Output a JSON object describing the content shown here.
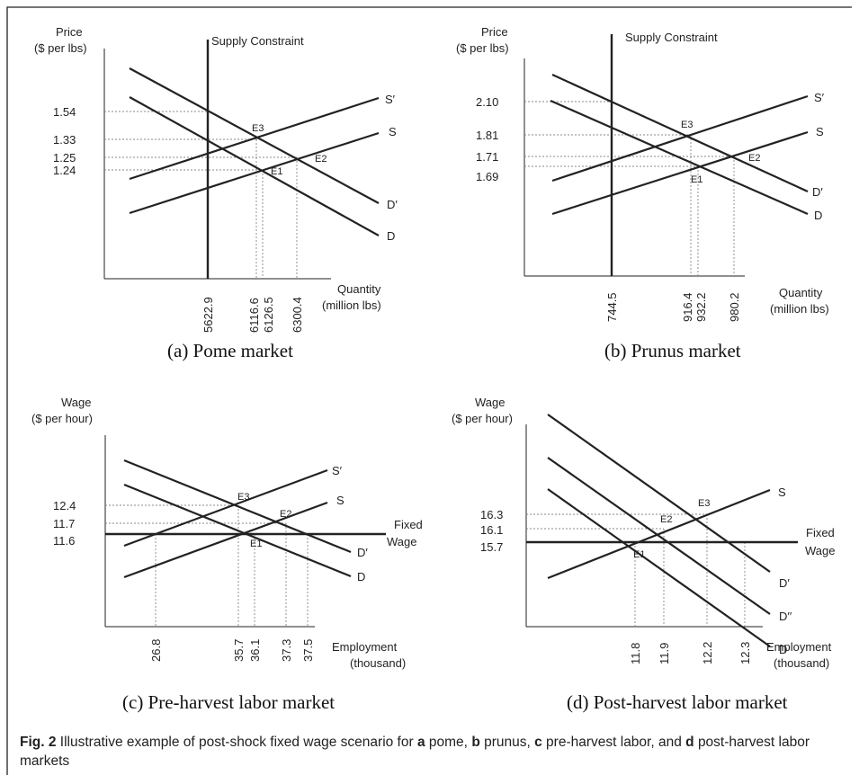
{
  "panels": {
    "a": {
      "caption": "(a) Pome market",
      "ylabel": [
        "Price",
        "($ per lbs)"
      ],
      "xlabel": [
        "Quantity",
        "(million lbs)"
      ],
      "constraint_label": "Supply Constraint",
      "yticks": [
        "1.54",
        "1.33",
        "1.25",
        "1.24"
      ],
      "xticks": [
        "5622.9",
        "6116.6",
        "6126.5",
        "6300.4"
      ],
      "curves": [
        "S′",
        "S",
        "D′",
        "D"
      ],
      "points": [
        "E3",
        "E2",
        "E1"
      ]
    },
    "b": {
      "caption": "(b) Prunus market",
      "ylabel": [
        "Price",
        "($ per lbs)"
      ],
      "xlabel": [
        "Quantity",
        "(million lbs)"
      ],
      "constraint_label": "Supply Constraint",
      "yticks": [
        "2.10",
        "1.81",
        "1.71",
        "1.69"
      ],
      "xticks": [
        "744.5",
        "916.4",
        "932.2",
        "980.2"
      ],
      "curves": [
        "S′",
        "S",
        "D′",
        "D"
      ],
      "points": [
        "E3",
        "E2",
        "E1"
      ]
    },
    "c": {
      "caption": "(c) Pre-harvest labor market",
      "ylabel": [
        "Wage",
        "($ per hour)"
      ],
      "xlabel": [
        "Employment",
        "(thousand)"
      ],
      "fixed_label": [
        "Fixed",
        "Wage"
      ],
      "yticks": [
        "12.4",
        "11.7",
        "11.6"
      ],
      "xticks": [
        "26.8",
        "35.7",
        "36.1",
        "37.3",
        "37.5"
      ],
      "curves": [
        "S′",
        "S",
        "D′",
        "D"
      ],
      "points": [
        "E3",
        "E2",
        "E1"
      ]
    },
    "d": {
      "caption": "(d) Post-harvest labor market",
      "ylabel": [
        "Wage",
        "($ per hour)"
      ],
      "xlabel": [
        "Employment",
        "(thousand)"
      ],
      "fixed_label": [
        "Fixed",
        "Wage"
      ],
      "yticks": [
        "16.3",
        "16.1",
        "15.7"
      ],
      "xticks": [
        "11.8",
        "11.9",
        "12.2",
        "12.3"
      ],
      "curves": [
        "S",
        "D′",
        "D′′",
        "D"
      ],
      "points": [
        "E3",
        "E2",
        "E1"
      ]
    }
  },
  "figure_caption": {
    "label": "Fig. 2",
    "text_before": "Illustrative example of post-shock fixed wage scenario for",
    "a": "a",
    "a_text": "pome,",
    "b": "b",
    "b_text": "prunus,",
    "c": "c",
    "c_text": "pre-harvest labor, and",
    "d": "d",
    "d_text": "post-harvest labor markets"
  }
}
